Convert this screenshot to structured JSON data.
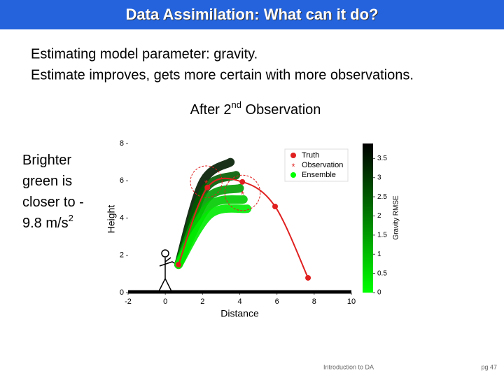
{
  "slide": {
    "title": "Data Assimilation: What can it do?",
    "bullets": [
      "Estimating model parameter: gravity.",
      "Estimate improves, gets more certain with more observations."
    ],
    "heading": {
      "before": "After 2",
      "sup": "nd",
      "after": " Observation"
    },
    "side_note": {
      "lines": [
        "Brighter",
        "green is",
        "closer to -",
        "9.8 m/s"
      ],
      "sup": "2"
    },
    "footer": "Introduction to DA",
    "page": "pg 47"
  },
  "chart_data": {
    "type": "trajectory",
    "xlabel": "Distance",
    "ylabel": "Height",
    "xlim": [
      -2,
      10
    ],
    "ylim": [
      0,
      8
    ],
    "xticks": [
      -2,
      0,
      2,
      4,
      6,
      8,
      10
    ],
    "yticks": [
      0,
      2,
      4,
      6,
      8
    ],
    "legend": "upper right",
    "series": [
      {
        "name": "Truth",
        "color": "#e02020",
        "x": [
          0.71,
          2.26,
          4.14,
          5.9,
          7.67
        ],
        "values": [
          1.5,
          5.64,
          5.94,
          4.62,
          0.79
        ]
      },
      {
        "name": "Observation",
        "color": "#e02020",
        "x": [
          2.2,
          4.15
        ],
        "values": [
          5.95,
          5.35
        ],
        "errors": [
          0.85,
          0.95
        ]
      },
      {
        "name": "Ensemble",
        "color": "#00ff00",
        "members": [
          {
            "x": [
              0.71,
              2.0,
              3.5
            ],
            "values": [
              1.5,
              5.9,
              7.0
            ],
            "rmse": 3.5
          },
          {
            "x": [
              0.71,
              2.1,
              3.8
            ],
            "values": [
              1.5,
              5.5,
              6.3
            ],
            "rmse": 2.5
          },
          {
            "x": [
              0.71,
              2.2,
              4.0
            ],
            "values": [
              1.5,
              5.0,
              5.6
            ],
            "rmse": 1.5
          },
          {
            "x": [
              0.71,
              2.3,
              4.2
            ],
            "values": [
              1.5,
              4.6,
              5.0
            ],
            "rmse": 0.8
          },
          {
            "x": [
              0.71,
              2.4,
              4.4
            ],
            "values": [
              1.5,
              4.2,
              4.5
            ],
            "rmse": 0.3
          }
        ]
      }
    ],
    "colorbar": {
      "label": "Gravity RMSE",
      "clim": [
        0,
        3.89
      ],
      "ticks": [
        0,
        0.5,
        1,
        1.5,
        2,
        2.5,
        3,
        3.5
      ],
      "colormap": [
        "#00ff00",
        "#000000"
      ]
    }
  }
}
